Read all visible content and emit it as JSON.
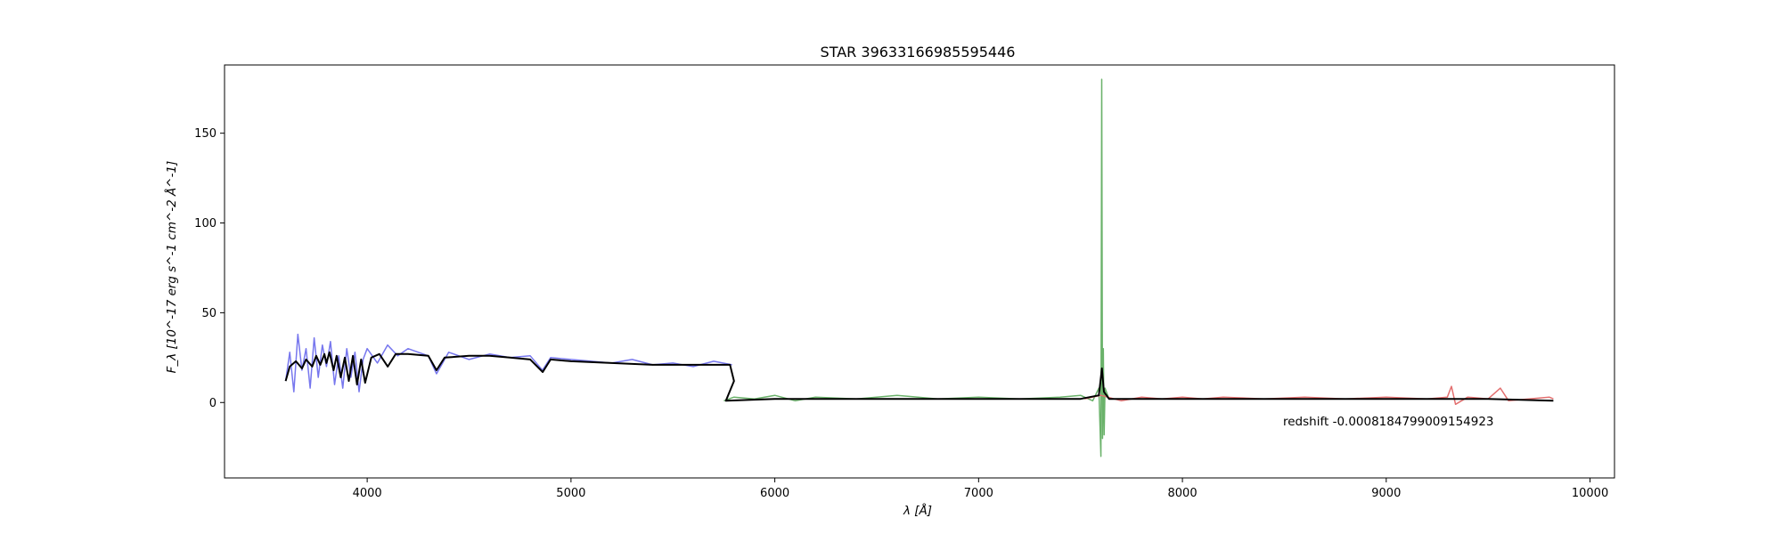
{
  "chart_data": {
    "type": "line",
    "title": "STAR 39633166985595446",
    "xlabel": "λ [Å]",
    "ylabel": "F_λ [10^-17 erg s^-1 cm^-2 Å^-1]",
    "xlim": [
      3300,
      10120
    ],
    "ylim": [
      -42,
      188
    ],
    "x_ticks": [
      4000,
      5000,
      6000,
      7000,
      8000,
      9000,
      10000
    ],
    "y_ticks": [
      0,
      50,
      100,
      150
    ],
    "grid": false,
    "annotation": "redshift -0.0008184799009154923",
    "series": [
      {
        "color": "#7777ee",
        "x": [
          3600,
          3620,
          3640,
          3660,
          3680,
          3700,
          3720,
          3740,
          3760,
          3780,
          3800,
          3820,
          3840,
          3860,
          3880,
          3900,
          3920,
          3940,
          3960,
          3980,
          4000,
          4050,
          4100,
          4150,
          4200,
          4300,
          4340,
          4400,
          4500,
          4600,
          4700,
          4800,
          4860,
          4900,
          5000,
          5100,
          5200,
          5300,
          5400,
          5500,
          5600,
          5700,
          5790
        ],
        "y": [
          12,
          28,
          6,
          38,
          18,
          30,
          8,
          36,
          14,
          32,
          20,
          34,
          10,
          26,
          8,
          30,
          14,
          28,
          6,
          24,
          30,
          22,
          32,
          26,
          30,
          26,
          16,
          28,
          24,
          27,
          25,
          26,
          18,
          25,
          24,
          23,
          22,
          24,
          21,
          22,
          20,
          23,
          21
        ]
      },
      {
        "color": "#6ab26a",
        "x": [
          5750,
          5800,
          5900,
          6000,
          6100,
          6200,
          6400,
          6600,
          6800,
          7000,
          7200,
          7400,
          7500,
          7560,
          7590,
          7600,
          7604,
          7608,
          7612,
          7616,
          7620,
          7640,
          7680
        ],
        "y": [
          1,
          3,
          2,
          4,
          1,
          3,
          2,
          4,
          2,
          3,
          2,
          3,
          4,
          1,
          8,
          -30,
          180,
          -20,
          30,
          -18,
          8,
          2,
          2
        ]
      },
      {
        "color": "#e37070",
        "x": [
          7520,
          7600,
          7700,
          7800,
          7900,
          8000,
          8100,
          8200,
          8400,
          8600,
          8800,
          9000,
          9200,
          9300,
          9320,
          9340,
          9400,
          9500,
          9560,
          9600,
          9700,
          9800,
          9820
        ],
        "y": [
          2,
          4,
          1,
          3,
          2,
          3,
          2,
          3,
          2,
          3,
          2,
          3,
          2,
          3,
          9,
          -1,
          3,
          2,
          8,
          1,
          2,
          3,
          2
        ]
      },
      {
        "color": "#000000",
        "x": [
          3600,
          3620,
          3650,
          3680,
          3700,
          3730,
          3750,
          3770,
          3790,
          3800,
          3815,
          3835,
          3850,
          3870,
          3890,
          3910,
          3930,
          3950,
          3970,
          3990,
          4020,
          4060,
          4101,
          4140,
          4200,
          4300,
          4340,
          4380,
          4500,
          4600,
          4700,
          4800,
          4861,
          4900,
          5000,
          5200,
          5400,
          5600,
          5780,
          5800,
          5760,
          6000,
          6500,
          7000,
          7500,
          7590,
          7605,
          7615,
          7640,
          7700,
          8000,
          8500,
          9000,
          9500,
          9820
        ],
        "y": [
          12,
          20,
          23,
          19,
          24,
          20,
          26,
          21,
          27,
          22,
          28,
          18,
          26,
          14,
          25,
          12,
          26,
          10,
          24,
          11,
          25,
          27,
          20,
          27,
          27,
          26,
          18,
          25,
          26,
          26,
          25,
          24,
          17,
          24,
          23,
          22,
          21,
          21,
          21,
          12,
          1,
          2,
          2,
          2,
          2,
          4,
          19,
          6,
          2,
          2,
          2,
          2,
          2,
          2,
          1
        ]
      }
    ]
  }
}
